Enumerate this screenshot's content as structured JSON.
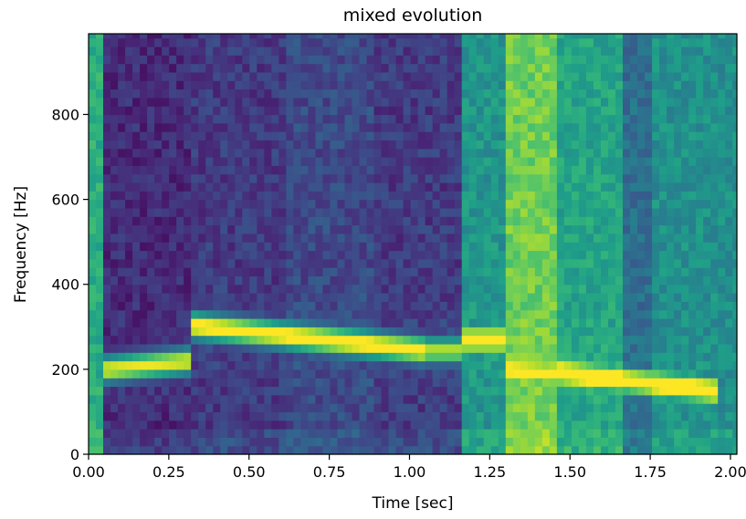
{
  "chart_data": {
    "type": "heatmap",
    "title": "mixed evolution",
    "xlabel": "Time [sec]",
    "ylabel": "Frequency [Hz]",
    "xlim": [
      0.0,
      2.02
    ],
    "ylim": [
      0,
      990
    ],
    "xticks": [
      0.0,
      0.25,
      0.5,
      0.75,
      1.0,
      1.25,
      1.5,
      1.75,
      2.0
    ],
    "xtick_labels": [
      "0.00",
      "0.25",
      "0.50",
      "0.75",
      "1.00",
      "1.25",
      "1.50",
      "1.75",
      "2.00"
    ],
    "yticks": [
      0,
      200,
      400,
      600,
      800
    ],
    "ytick_labels": [
      "0",
      "200",
      "400",
      "600",
      "800"
    ],
    "colormap": "viridis",
    "time_bin_sec": 0.0228,
    "freq_bin_hz": 20,
    "noise_floor_segments": [
      {
        "t_start": 0.0,
        "t_end": 0.045,
        "level": 0.62
      },
      {
        "t_start": 0.045,
        "t_end": 0.31,
        "level": 0.12
      },
      {
        "t_start": 0.31,
        "t_end": 0.62,
        "level": 0.17
      },
      {
        "t_start": 0.62,
        "t_end": 0.88,
        "level": 0.22
      },
      {
        "t_start": 0.88,
        "t_end": 1.17,
        "level": 0.17
      },
      {
        "t_start": 1.17,
        "t_end": 1.31,
        "level": 0.52
      },
      {
        "t_start": 1.31,
        "t_end": 1.45,
        "level": 0.78
      },
      {
        "t_start": 1.45,
        "t_end": 1.67,
        "level": 0.58
      },
      {
        "t_start": 1.67,
        "t_end": 1.75,
        "level": 0.36
      },
      {
        "t_start": 1.75,
        "t_end": 2.02,
        "level": 0.5
      }
    ],
    "tone_segments": [
      {
        "t_start": 0.045,
        "t_end": 0.31,
        "f_start": 200,
        "f_end": 220,
        "intensity": 0.88
      },
      {
        "t_start": 0.31,
        "t_end": 1.05,
        "f_start": 305,
        "f_end": 245,
        "intensity": 0.96
      },
      {
        "t_start": 1.05,
        "t_end": 1.17,
        "f_start": 245,
        "f_end": 245,
        "intensity": 0.78
      },
      {
        "t_start": 1.17,
        "t_end": 1.31,
        "f_start": 270,
        "f_end": 270,
        "intensity": 0.9
      },
      {
        "t_start": 1.31,
        "t_end": 1.45,
        "f_start": 200,
        "f_end": 190,
        "intensity": 0.7
      },
      {
        "t_start": 1.45,
        "t_end": 1.95,
        "f_start": 195,
        "f_end": 150,
        "intensity": 0.93
      }
    ]
  }
}
